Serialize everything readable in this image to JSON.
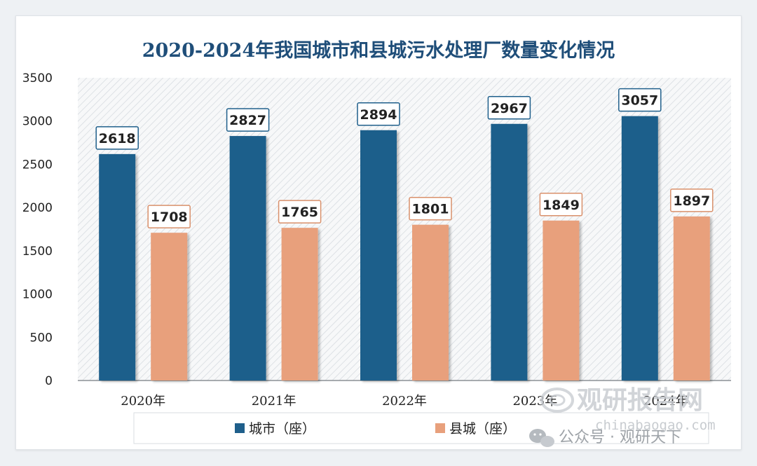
{
  "chart_data": {
    "type": "bar",
    "title": "2020-2024年我国城市和县城污水处理厂数量变化情况",
    "categories": [
      "2020年",
      "2021年",
      "2022年",
      "2023年",
      "2024年"
    ],
    "series": [
      {
        "name": "城市（座）",
        "values": [
          2618,
          2827,
          2894,
          2967,
          3057
        ],
        "color": "#1f5f8b",
        "label_border": "#1f5f8b",
        "label_color": "#222222"
      },
      {
        "name": "县城（座）",
        "values": [
          1708,
          1765,
          1801,
          1849,
          1897
        ],
        "color": "#e8a07c",
        "label_border": "#d9906b",
        "label_color": "#222222"
      }
    ],
    "ylim": [
      0,
      3500
    ],
    "yticks": [
      "0",
      "500",
      "1000",
      "1500",
      "2000",
      "2500",
      "3000",
      "3500"
    ],
    "xlabel": "",
    "ylabel": "",
    "grid": false,
    "legend_position": "bottom",
    "plot_background": "diagonal-hatch"
  },
  "watermark": {
    "brand": "观研报告网",
    "url": "chinabaogao.com",
    "wechat": "公众号 · 观研天下"
  }
}
